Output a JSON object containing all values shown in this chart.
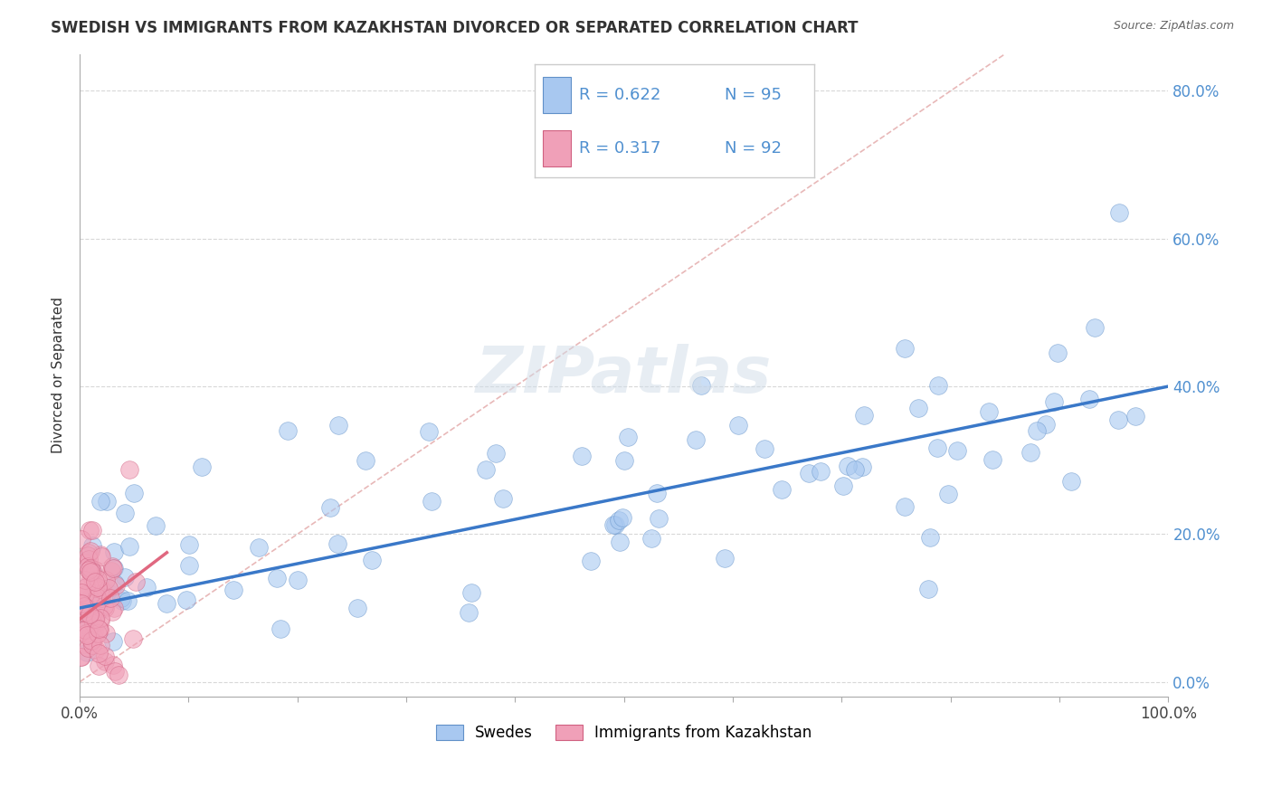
{
  "title": "SWEDISH VS IMMIGRANTS FROM KAZAKHSTAN DIVORCED OR SEPARATED CORRELATION CHART",
  "source": "Source: ZipAtlas.com",
  "ylabel": "Divorced or Separated",
  "blue_color": "#a8c8f0",
  "blue_edge": "#6090c8",
  "pink_color": "#f0a0b8",
  "pink_edge": "#d06080",
  "blue_line_color": "#3a78c8",
  "pink_line_color": "#e06880",
  "diagonal_color": "#e8b8b8",
  "background_color": "#ffffff",
  "grid_color": "#d8d8d8",
  "ytick_color": "#5090d0",
  "title_color": "#333333",
  "source_color": "#666666",
  "legend_r1": "R = 0.622",
  "legend_n1": "N = 95",
  "legend_r2": "R = 0.317",
  "legend_n2": "N = 92",
  "sw_line_x0": 0.0,
  "sw_line_y0": 0.1,
  "sw_line_x1": 1.0,
  "sw_line_y1": 0.4,
  "kaz_line_x0": 0.0,
  "kaz_line_y0": 0.085,
  "kaz_line_x1": 0.08,
  "kaz_line_y1": 0.175,
  "xmin": 0.0,
  "xmax": 1.0,
  "ymin": -0.02,
  "ymax": 0.85
}
